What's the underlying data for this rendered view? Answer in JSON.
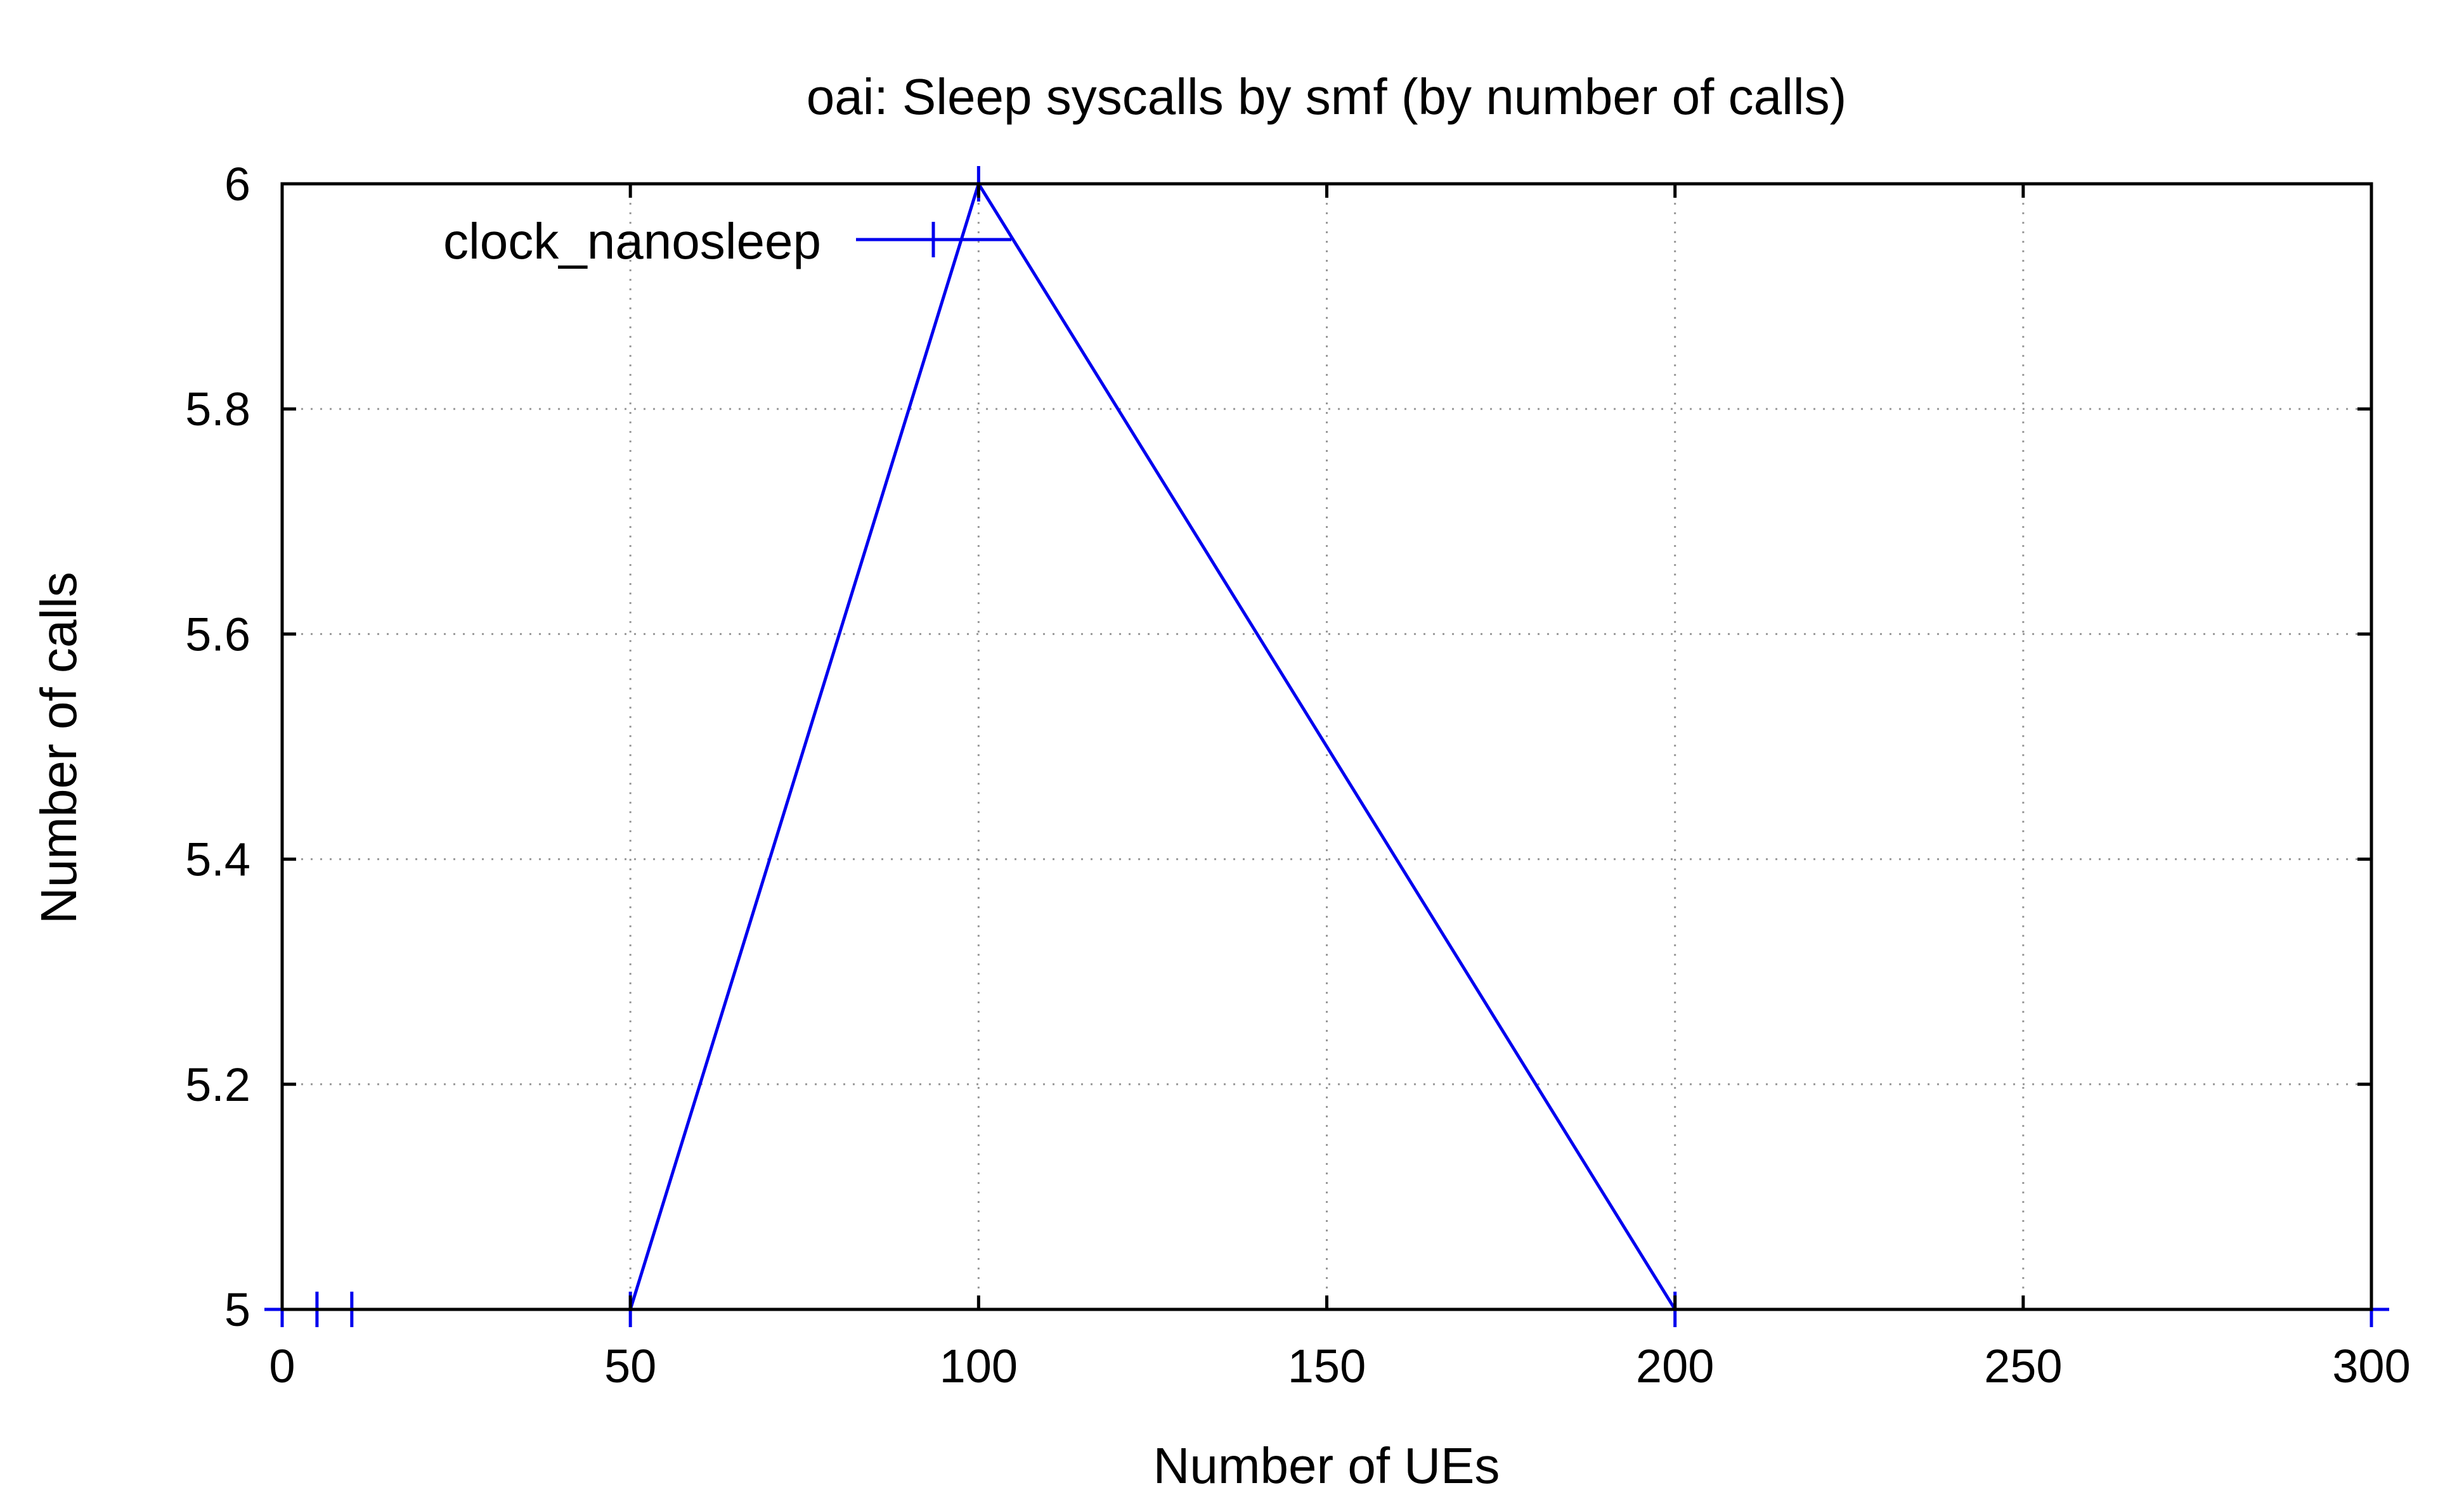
{
  "chart_data": {
    "type": "line",
    "title": "oai: Sleep syscalls by smf (by number of calls)",
    "xlabel": "Number of UEs",
    "ylabel": "Number of calls",
    "xlim": [
      0,
      300
    ],
    "ylim": [
      5,
      6
    ],
    "xticks": [
      "0",
      "50",
      "100",
      "150",
      "200",
      "250",
      "300"
    ],
    "yticks": [
      "5",
      "5.2",
      "5.4",
      "5.6",
      "5.8",
      "6"
    ],
    "grid": true,
    "legend": "top-left",
    "series": [
      {
        "name": "clock_nanosleep",
        "color": "#0000ee",
        "x": [
          0,
          5,
          10,
          50,
          100,
          200,
          300
        ],
        "y": [
          5,
          5,
          5,
          5,
          6,
          5,
          5
        ]
      }
    ]
  }
}
